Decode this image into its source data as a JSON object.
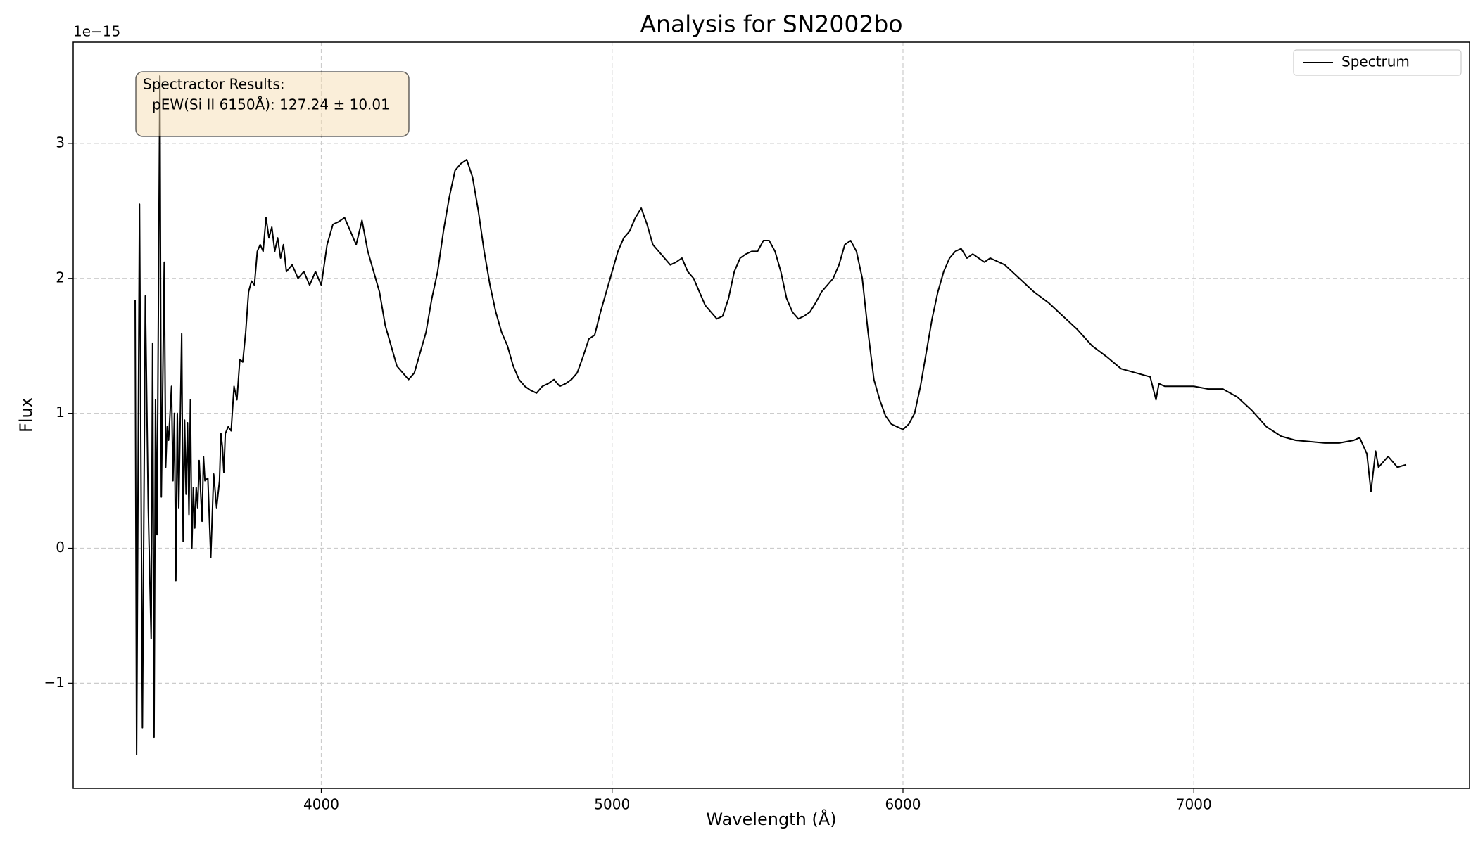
{
  "chart_data": {
    "type": "line",
    "title": "Analysis for SN2002bo",
    "xlabel": "Wavelength (Å)",
    "ylabel": "Flux",
    "y_offset_label": "1e−15",
    "annotation": [
      "Spectractor Results:",
      "pEW(Si II 6150Å): 127.24 ± 10.01"
    ],
    "xlim": [
      3147,
      7948
    ],
    "ylim": [
      -1.78,
      3.75
    ],
    "xticks": [
      4000,
      5000,
      6000,
      7000
    ],
    "yticks": [
      {
        "value": -1,
        "label": "−1"
      },
      0,
      1,
      2,
      3
    ],
    "grid": true,
    "legend": "upper right",
    "x": [
      3360,
      3365,
      3375,
      3385,
      3395,
      3405,
      3415,
      3420,
      3425,
      3430,
      3435,
      3445,
      3450,
      3460,
      3465,
      3470,
      3475,
      3485,
      3490,
      3495,
      3500,
      3505,
      3510,
      3520,
      3525,
      3530,
      3535,
      3540,
      3545,
      3550,
      3555,
      3560,
      3565,
      3570,
      3575,
      3580,
      3590,
      3595,
      3600,
      3610,
      3620,
      3630,
      3640,
      3650,
      3655,
      3660,
      3665,
      3670,
      3680,
      3690,
      3700,
      3710,
      3720,
      3730,
      3740,
      3750,
      3760,
      3770,
      3780,
      3790,
      3800,
      3810,
      3820,
      3830,
      3840,
      3850,
      3860,
      3870,
      3880,
      3900,
      3920,
      3940,
      3960,
      3980,
      4000,
      4020,
      4040,
      4060,
      4080,
      4100,
      4120,
      4140,
      4160,
      4180,
      4200,
      4220,
      4240,
      4260,
      4280,
      4300,
      4320,
      4340,
      4360,
      4380,
      4400,
      4420,
      4440,
      4460,
      4480,
      4500,
      4520,
      4540,
      4560,
      4580,
      4600,
      4620,
      4640,
      4660,
      4680,
      4700,
      4720,
      4740,
      4760,
      4780,
      4800,
      4820,
      4840,
      4860,
      4880,
      4900,
      4920,
      4940,
      4960,
      4980,
      5000,
      5020,
      5040,
      5060,
      5080,
      5100,
      5120,
      5140,
      5160,
      5180,
      5200,
      5220,
      5240,
      5260,
      5280,
      5300,
      5320,
      5340,
      5360,
      5380,
      5400,
      5420,
      5440,
      5460,
      5480,
      5500,
      5520,
      5540,
      5560,
      5580,
      5600,
      5620,
      5640,
      5660,
      5680,
      5700,
      5720,
      5740,
      5760,
      5780,
      5800,
      5820,
      5840,
      5860,
      5880,
      5900,
      5920,
      5940,
      5960,
      5980,
      6000,
      6020,
      6040,
      6060,
      6080,
      6100,
      6120,
      6140,
      6160,
      6180,
      6200,
      6220,
      6240,
      6260,
      6280,
      6300,
      6350,
      6400,
      6450,
      6500,
      6550,
      6600,
      6650,
      6700,
      6750,
      6800,
      6850,
      6870,
      6880,
      6900,
      6950,
      7000,
      7050,
      7100,
      7150,
      7200,
      7250,
      7300,
      7350,
      7400,
      7450,
      7500,
      7550,
      7570,
      7595,
      7609,
      7625,
      7635,
      7668,
      7700,
      7730
    ],
    "series": [
      {
        "name": "Spectrum",
        "color": "#000000",
        "values": [
          1.84,
          -1.53,
          2.55,
          -1.33,
          1.87,
          0.3,
          -0.67,
          1.52,
          -1.4,
          1.1,
          0.1,
          3.5,
          0.38,
          2.12,
          0.6,
          0.9,
          0.8,
          1.2,
          0.5,
          1.0,
          -0.24,
          1.0,
          0.3,
          1.59,
          0.05,
          0.95,
          0.4,
          0.93,
          0.25,
          1.1,
          0.0,
          0.45,
          0.15,
          0.45,
          0.3,
          0.65,
          0.2,
          0.68,
          0.5,
          0.52,
          -0.07,
          0.55,
          0.3,
          0.5,
          0.85,
          0.75,
          0.56,
          0.85,
          0.9,
          0.87,
          1.2,
          1.1,
          1.4,
          1.38,
          1.6,
          1.9,
          1.98,
          1.95,
          2.2,
          2.25,
          2.2,
          2.45,
          2.3,
          2.38,
          2.2,
          2.3,
          2.15,
          2.25,
          2.05,
          2.1,
          2.0,
          2.05,
          1.95,
          2.05,
          1.95,
          2.25,
          2.4,
          2.42,
          2.45,
          2.35,
          2.25,
          2.43,
          2.2,
          2.05,
          1.9,
          1.65,
          1.5,
          1.35,
          1.3,
          1.25,
          1.3,
          1.45,
          1.6,
          1.85,
          2.05,
          2.35,
          2.6,
          2.8,
          2.85,
          2.88,
          2.75,
          2.5,
          2.2,
          1.95,
          1.75,
          1.6,
          1.5,
          1.35,
          1.25,
          1.2,
          1.17,
          1.15,
          1.2,
          1.22,
          1.25,
          1.2,
          1.22,
          1.25,
          1.3,
          1.42,
          1.55,
          1.58,
          1.75,
          1.9,
          2.05,
          2.2,
          2.3,
          2.35,
          2.45,
          2.52,
          2.4,
          2.25,
          2.2,
          2.15,
          2.1,
          2.12,
          2.15,
          2.05,
          2.0,
          1.9,
          1.8,
          1.75,
          1.7,
          1.72,
          1.85,
          2.05,
          2.15,
          2.18,
          2.2,
          2.2,
          2.28,
          2.28,
          2.2,
          2.05,
          1.85,
          1.75,
          1.7,
          1.72,
          1.75,
          1.82,
          1.9,
          1.95,
          2.0,
          2.1,
          2.25,
          2.28,
          2.2,
          2.0,
          1.6,
          1.25,
          1.1,
          0.98,
          0.92,
          0.9,
          0.88,
          0.92,
          1.0,
          1.2,
          1.45,
          1.7,
          1.9,
          2.05,
          2.15,
          2.2,
          2.22,
          2.15,
          2.18,
          2.15,
          2.12,
          2.15,
          2.1,
          2.0,
          1.9,
          1.82,
          1.72,
          1.62,
          1.5,
          1.42,
          1.33,
          1.3,
          1.27,
          1.1,
          1.22,
          1.2,
          1.2,
          1.2,
          1.18,
          1.18,
          1.12,
          1.02,
          0.9,
          0.83,
          0.8,
          0.79,
          0.78,
          0.78,
          0.8,
          0.82,
          0.7,
          0.42,
          0.72,
          0.6,
          0.68,
          0.6,
          0.62
        ]
      }
    ]
  }
}
